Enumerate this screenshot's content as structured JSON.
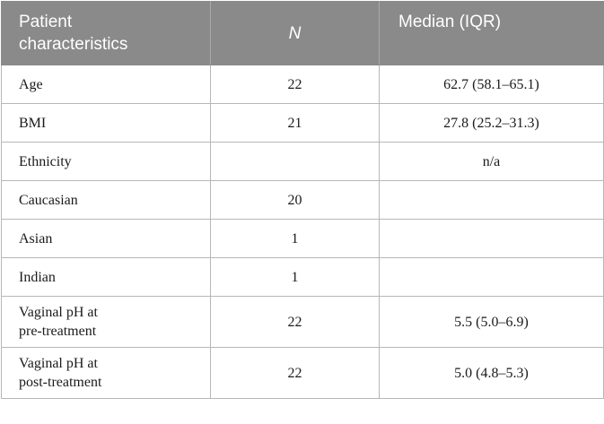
{
  "table": {
    "headers": [
      "Patient characteristics",
      "N",
      "Median (IQR)"
    ],
    "header_line1": "Patient",
    "header_line2": "characteristics",
    "rows": [
      {
        "label": "Age",
        "n": "22",
        "median": "62.7 (58.1–65.1)"
      },
      {
        "label": "BMI",
        "n": "21",
        "median": "27.8 (25.2–31.3)"
      },
      {
        "label": "Ethnicity",
        "n": "",
        "median": "n/a"
      },
      {
        "label": "Caucasian",
        "n": "20",
        "median": ""
      },
      {
        "label": "Asian",
        "n": "1",
        "median": ""
      },
      {
        "label": "Indian",
        "n": "1",
        "median": ""
      },
      {
        "label_line1": "Vaginal pH at",
        "label_line2": "pre-treatment",
        "n": "22",
        "median": "5.5 (5.0–6.9)"
      },
      {
        "label_line1": "Vaginal pH at",
        "label_line2": "post-treatment",
        "n": "22",
        "median": "5.0 (4.8–5.3)"
      }
    ]
  },
  "colors": {
    "header_bg": "#8a8a8a",
    "header_text": "#ffffff",
    "grid": "#b7b7b7"
  }
}
